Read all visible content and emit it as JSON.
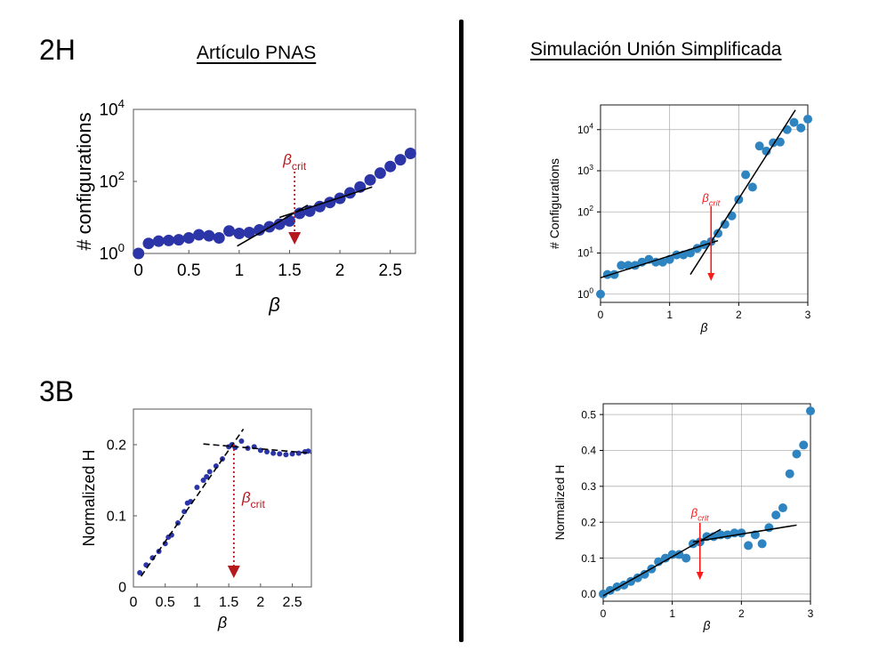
{
  "page": {
    "label_top": "2H",
    "label_bottom": "3B",
    "header_left": "Artículo PNAS",
    "header_right": "Simulación Unión Simplificada"
  },
  "chart_data": [
    {
      "id": "pnas-2h",
      "type": "scatter",
      "ylabel": "# configurations",
      "xlabel": "β",
      "annotation": "βcrit",
      "annotation_x": 1.55,
      "y_scale": "log",
      "xlim": [
        -0.05,
        2.75
      ],
      "ylim_log10": [
        0,
        4
      ],
      "x_ticks": [
        0,
        0.5,
        1,
        1.5,
        2,
        2.5
      ],
      "x_tick_labels": [
        "0",
        "0.5",
        "1",
        "1.5",
        "2",
        "2.5"
      ],
      "y_tick_exponents": [
        0,
        2,
        4
      ],
      "y_tick_base": "10",
      "marker_color": "#2b35a7",
      "annotation_color": "#b5181d",
      "series": [
        {
          "x": [
            0,
            0.1,
            0.2,
            0.3,
            0.4,
            0.5,
            0.6,
            0.7,
            0.8,
            0.9,
            1.0,
            1.1,
            1.2,
            1.3,
            1.4,
            1.5,
            1.6,
            1.7,
            1.8,
            1.9,
            2.0,
            2.1,
            2.2,
            2.3,
            2.4,
            2.5,
            2.6,
            2.7
          ],
          "y": [
            1.0,
            1.9,
            2.2,
            2.3,
            2.4,
            2.7,
            3.3,
            3.1,
            2.7,
            4.2,
            3.6,
            3.8,
            4.5,
            5.5,
            6.5,
            8,
            13,
            15,
            20,
            26,
            34,
            48,
            70,
            110,
            170,
            260,
            400,
            600
          ]
        }
      ],
      "fit_lines": [
        {
          "x": [
            0.98,
            1.68
          ],
          "y": [
            1.6,
            22
          ]
        },
        {
          "x": [
            1.4,
            2.32
          ],
          "y": [
            10,
            70
          ]
        }
      ]
    },
    {
      "id": "sim-2h",
      "type": "scatter",
      "ylabel": "# Configurations",
      "xlabel": "β",
      "annotation": "βcrit",
      "annotation_x": 1.6,
      "y_scale": "log",
      "xlim": [
        0,
        3
      ],
      "ylim_log10": [
        -0.2,
        4.6
      ],
      "x_ticks": [
        0,
        1,
        2,
        3
      ],
      "x_tick_labels": [
        "0",
        "1",
        "2",
        "3"
      ],
      "y_tick_exponents": [
        0,
        1,
        2,
        3,
        4
      ],
      "y_tick_base": "10",
      "grid": true,
      "marker_color": "#2d84c0",
      "annotation_color": "#ff1a1a",
      "series": [
        {
          "x": [
            0,
            0.1,
            0.2,
            0.3,
            0.4,
            0.5,
            0.6,
            0.7,
            0.8,
            0.9,
            1.0,
            1.1,
            1.2,
            1.3,
            1.4,
            1.5,
            1.6,
            1.7,
            1.8,
            1.9,
            2.0,
            2.1,
            2.2,
            2.3,
            2.4,
            2.5,
            2.6,
            2.7,
            2.8,
            2.9,
            3.0
          ],
          "y": [
            1,
            3,
            3,
            5,
            5,
            5,
            6,
            7,
            6,
            6,
            7,
            9,
            9,
            10,
            13,
            16,
            19,
            30,
            50,
            80,
            200,
            800,
            400,
            4000,
            3000,
            4800,
            5000,
            10000,
            15000,
            11000,
            18000
          ]
        }
      ],
      "fit_lines": [
        {
          "x": [
            0,
            1.7
          ],
          "y": [
            2.5,
            20
          ]
        },
        {
          "x": [
            1.3,
            2.82
          ],
          "y": [
            3,
            30000
          ]
        }
      ]
    },
    {
      "id": "pnas-3b",
      "type": "scatter",
      "ylabel": "Normalized H",
      "xlabel": "β",
      "annotation": "βcrit",
      "annotation_x": 1.58,
      "xlim": [
        0,
        2.8
      ],
      "ylim": [
        0,
        0.25
      ],
      "x_ticks": [
        0,
        0.5,
        1,
        1.5,
        2,
        2.5
      ],
      "x_tick_labels": [
        "0",
        "0.5",
        "1",
        "1.5",
        "2",
        "2.5"
      ],
      "y_ticks": [
        0,
        0.1,
        0.2
      ],
      "y_tick_labels": [
        "0",
        "0.1",
        "0.2"
      ],
      "marker_color": "#2b35a7",
      "annotation_color": "#b5181d",
      "series": [
        {
          "x": [
            0.1,
            0.2,
            0.3,
            0.4,
            0.5,
            0.55,
            0.6,
            0.7,
            0.8,
            0.85,
            0.9,
            1.0,
            1.1,
            1.15,
            1.2,
            1.3,
            1.4,
            1.5,
            1.55,
            1.6,
            1.7,
            1.8,
            1.9,
            2.0,
            2.1,
            2.2,
            2.3,
            2.4,
            2.5,
            2.6,
            2.7,
            2.75
          ],
          "y": [
            0.02,
            0.031,
            0.041,
            0.05,
            0.061,
            0.07,
            0.073,
            0.09,
            0.106,
            0.118,
            0.12,
            0.14,
            0.15,
            0.155,
            0.162,
            0.17,
            0.18,
            0.197,
            0.2,
            0.196,
            0.205,
            0.195,
            0.197,
            0.192,
            0.19,
            0.188,
            0.187,
            0.186,
            0.187,
            0.188,
            0.19,
            0.191
          ]
        }
      ],
      "fit_lines": [
        {
          "x": [
            0.12,
            1.73
          ],
          "y": [
            0.015,
            0.222
          ]
        },
        {
          "x": [
            1.1,
            2.8
          ],
          "y": [
            0.201,
            0.188
          ]
        }
      ]
    },
    {
      "id": "sim-3b",
      "type": "scatter",
      "ylabel": "Normalized H",
      "xlabel": "β",
      "annotation": "βcrit",
      "annotation_x": 1.4,
      "xlim": [
        0,
        3
      ],
      "ylim": [
        -0.02,
        0.53
      ],
      "x_ticks": [
        0,
        1,
        2,
        3
      ],
      "x_tick_labels": [
        "0",
        "1",
        "2",
        "3"
      ],
      "y_ticks": [
        0,
        0.1,
        0.2,
        0.3,
        0.4,
        0.5
      ],
      "y_tick_labels": [
        "0.0",
        "0.1",
        "0.2",
        "0.3",
        "0.4",
        "0.5"
      ],
      "grid": true,
      "marker_color": "#2d84c0",
      "annotation_color": "#ff1a1a",
      "series": [
        {
          "x": [
            0,
            0.1,
            0.2,
            0.3,
            0.4,
            0.5,
            0.6,
            0.7,
            0.8,
            0.9,
            1.0,
            1.1,
            1.2,
            1.3,
            1.4,
            1.5,
            1.6,
            1.7,
            1.8,
            1.9,
            2.0,
            2.1,
            2.2,
            2.3,
            2.4,
            2.5,
            2.6,
            2.7,
            2.8,
            2.9,
            3.0
          ],
          "y": [
            0.0,
            0.01,
            0.02,
            0.025,
            0.035,
            0.045,
            0.055,
            0.07,
            0.09,
            0.1,
            0.11,
            0.11,
            0.1,
            0.14,
            0.145,
            0.16,
            0.16,
            0.165,
            0.165,
            0.17,
            0.17,
            0.135,
            0.165,
            0.14,
            0.185,
            0.22,
            0.24,
            0.335,
            0.39,
            0.415,
            0.51
          ]
        }
      ],
      "fit_lines": [
        {
          "x": [
            0,
            1.7
          ],
          "y": [
            -0.005,
            0.18
          ]
        },
        {
          "x": [
            1.3,
            2.8
          ],
          "y": [
            0.145,
            0.192
          ]
        }
      ]
    }
  ]
}
